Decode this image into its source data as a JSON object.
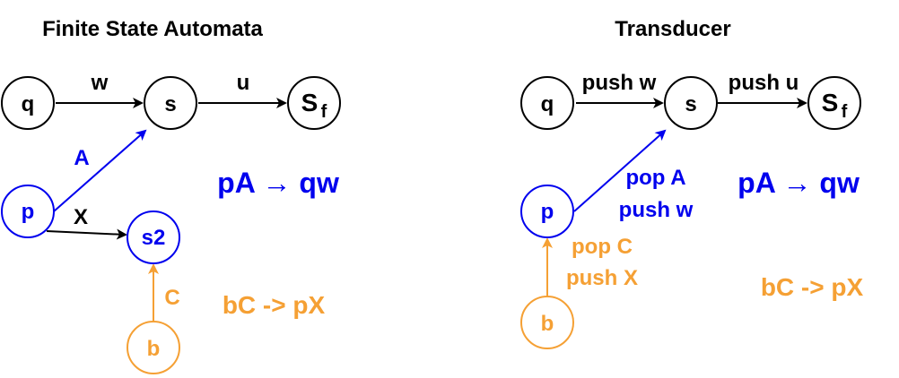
{
  "colors": {
    "black": "#000000",
    "blue": "#0000ee",
    "orange": "#f5a034"
  },
  "fsa": {
    "title": "Finite State Automata",
    "nodes": {
      "q": "q",
      "s": "s",
      "sf_main": "S",
      "sf_sub": "f",
      "p": "p",
      "s2": "s2",
      "b": "b"
    },
    "edges": {
      "q_s": "w",
      "s_sf": "u",
      "p_s": "A",
      "p_s2": "X",
      "b_s2": "C"
    },
    "rules": {
      "rule1": "pA → qw",
      "rule2": "bC -> pX"
    }
  },
  "transducer": {
    "title": "Transducer",
    "nodes": {
      "q": "q",
      "s": "s",
      "sf_main": "S",
      "sf_sub": "f",
      "p": "p",
      "b": "b"
    },
    "edges": {
      "q_s": "push w",
      "s_sf": "push u",
      "p_s_line1": "pop A",
      "p_s_line2": "push w",
      "b_p_line1": "pop C",
      "b_p_line2": "push X"
    },
    "rules": {
      "rule1": "pA → qw",
      "rule2": "bC -> pX"
    }
  }
}
